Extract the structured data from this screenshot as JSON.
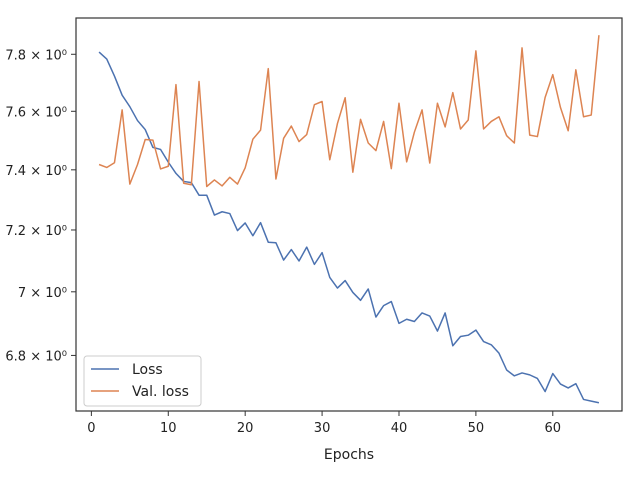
{
  "chart_data": {
    "type": "line",
    "title": "",
    "xlabel": "Epochs",
    "ylabel": "",
    "yscale": "log",
    "xlim": [
      -2,
      69
    ],
    "ylim": [
      6.63,
      7.93
    ],
    "grid": false,
    "legend_position": "bottom-left",
    "x_ticks": [
      0,
      10,
      20,
      30,
      40,
      50,
      60
    ],
    "x_tick_labels": [
      "0",
      "10",
      "20",
      "30",
      "40",
      "50",
      "60"
    ],
    "y_ticks": [
      6.8,
      7.0,
      7.2,
      7.4,
      7.6,
      7.8
    ],
    "y_tick_labels": [
      "6.8 × 10⁰",
      "7 × 10⁰",
      "7.2 × 10⁰",
      "7.4 × 10⁰",
      "7.6 × 10⁰",
      "7.8 × 10⁰"
    ],
    "x": [
      1,
      2,
      3,
      4,
      5,
      6,
      7,
      8,
      9,
      10,
      11,
      12,
      13,
      14,
      15,
      16,
      17,
      18,
      19,
      20,
      21,
      22,
      23,
      24,
      25,
      26,
      27,
      28,
      29,
      30,
      31,
      32,
      33,
      34,
      35,
      36,
      37,
      38,
      39,
      40,
      41,
      42,
      43,
      44,
      45,
      46,
      47,
      48,
      49,
      50,
      51,
      52,
      53,
      54,
      55,
      56,
      57,
      58,
      59,
      60,
      61,
      62,
      63,
      64,
      65,
      66
    ],
    "series": [
      {
        "name": "Loss",
        "color": "#4c72b0",
        "values": [
          7.808,
          7.783,
          7.723,
          7.656,
          7.616,
          7.568,
          7.537,
          7.476,
          7.469,
          7.426,
          7.388,
          7.361,
          7.357,
          7.315,
          7.315,
          7.249,
          7.26,
          7.254,
          7.198,
          7.223,
          7.181,
          7.224,
          7.16,
          7.158,
          7.102,
          7.136,
          7.099,
          7.144,
          7.088,
          7.126,
          7.046,
          7.012,
          7.036,
          6.998,
          6.973,
          7.009,
          6.92,
          6.956,
          6.969,
          6.9,
          6.913,
          6.906,
          6.933,
          6.923,
          6.876,
          6.933,
          6.83,
          6.859,
          6.863,
          6.879,
          6.843,
          6.833,
          6.807,
          6.755,
          6.737,
          6.746,
          6.74,
          6.729,
          6.689,
          6.744,
          6.712,
          6.7,
          6.713,
          6.665,
          6.66,
          6.655
        ]
      },
      {
        "name": "Val. loss",
        "color": "#dd8452",
        "values": [
          7.418,
          7.408,
          7.424,
          7.605,
          7.352,
          7.418,
          7.503,
          7.501,
          7.403,
          7.412,
          7.693,
          7.355,
          7.35,
          7.704,
          7.344,
          7.366,
          7.346,
          7.375,
          7.352,
          7.407,
          7.504,
          7.535,
          7.749,
          7.369,
          7.507,
          7.549,
          7.496,
          7.52,
          7.623,
          7.634,
          7.434,
          7.558,
          7.647,
          7.392,
          7.572,
          7.491,
          7.465,
          7.565,
          7.404,
          7.628,
          7.427,
          7.528,
          7.605,
          7.423,
          7.628,
          7.546,
          7.665,
          7.539,
          7.57,
          7.812,
          7.539,
          7.565,
          7.581,
          7.516,
          7.491,
          7.823,
          7.518,
          7.513,
          7.648,
          7.728,
          7.613,
          7.533,
          7.745,
          7.581,
          7.587,
          7.868
        ]
      }
    ]
  }
}
